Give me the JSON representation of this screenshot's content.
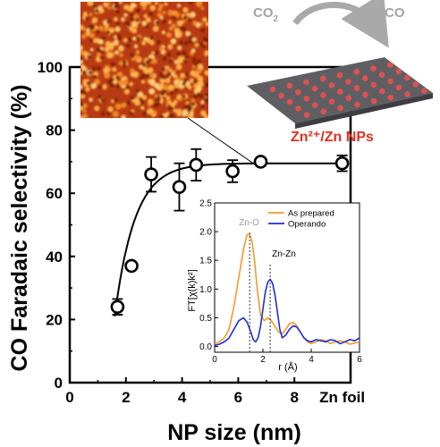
{
  "chart_data": [
    {
      "type": "scatter",
      "xlabel": "NP size (nm)",
      "ylabel": "CO Faradaic selectivity (%)",
      "xlim": [
        0,
        10
      ],
      "ylim": [
        0,
        100
      ],
      "xticks": [
        0,
        2,
        4,
        6,
        8
      ],
      "yticks": [
        0,
        20,
        40,
        60,
        80,
        100
      ],
      "extra_xtick": {
        "x": 9.7,
        "label": "Zn foil"
      },
      "points": [
        {
          "x": 1.7,
          "y": 24,
          "err": 2.5
        },
        {
          "x": 2.2,
          "y": 37,
          "err": 0
        },
        {
          "x": 2.9,
          "y": 66,
          "err": 5.5
        },
        {
          "x": 3.9,
          "y": 62,
          "err": 7.5
        },
        {
          "x": 4.5,
          "y": 69,
          "err": 5
        },
        {
          "x": 5.8,
          "y": 67,
          "err": 3.5
        },
        {
          "x": 6.8,
          "y": 70,
          "err": 1
        },
        {
          "x": 9.7,
          "y": 69.5,
          "err": 2.5
        }
      ],
      "fit": {
        "x0": 1.6,
        "x1": 9.7,
        "plateau": 69.5,
        "y_start": 21,
        "k": 1.4
      },
      "annotations": {
        "co2": "CO",
        "co2_sub": "2",
        "co": "CO",
        "np_label": "Zn²⁺/Zn NPs"
      },
      "colors": {
        "label_red": "#e03020",
        "afm_orange": "#d0581a",
        "surface": "#6e6e72",
        "np_dot": "#e05050"
      }
    },
    {
      "type": "line",
      "xlabel": "r (Å)",
      "ylabel": "FT[χ(k)k²]",
      "xlim": [
        0,
        6
      ],
      "ylim": [
        -0.1,
        2.5
      ],
      "xticks": [
        0,
        2,
        4,
        6
      ],
      "yticks": [
        0.0,
        0.5,
        1.0,
        1.5,
        2.0,
        2.5
      ],
      "series": [
        {
          "name": "As prepared",
          "color": "#f39a2a",
          "x": [
            0,
            0.2,
            0.4,
            0.6,
            0.8,
            1.0,
            1.2,
            1.35,
            1.45,
            1.55,
            1.65,
            1.75,
            1.9,
            2.05,
            2.2,
            2.35,
            2.5,
            2.65,
            2.8,
            2.95,
            3.1,
            3.25,
            3.4,
            3.55,
            3.7,
            3.85,
            4.0,
            4.2,
            4.4,
            4.6,
            4.8,
            5.0,
            5.2,
            5.4,
            5.6,
            5.8,
            6.0
          ],
          "y": [
            0.05,
            0.08,
            0.15,
            0.3,
            0.7,
            1.2,
            1.7,
            1.95,
            1.95,
            1.82,
            1.5,
            1.05,
            0.55,
            0.45,
            0.5,
            0.45,
            0.35,
            0.25,
            0.22,
            0.3,
            0.4,
            0.42,
            0.36,
            0.25,
            0.15,
            0.08,
            0.05,
            0.08,
            0.12,
            0.1,
            0.05,
            0.08,
            0.1,
            0.08,
            0.04,
            0.06,
            0.08
          ]
        },
        {
          "name": "Operando",
          "color": "#1f2fd8",
          "x": [
            0,
            0.2,
            0.4,
            0.6,
            0.8,
            1.0,
            1.2,
            1.35,
            1.5,
            1.6,
            1.7,
            1.8,
            1.9,
            2.0,
            2.1,
            2.2,
            2.3,
            2.4,
            2.5,
            2.6,
            2.7,
            2.8,
            2.95,
            3.1,
            3.25,
            3.4,
            3.55,
            3.7,
            3.85,
            4.0,
            4.2,
            4.4,
            4.6,
            4.8,
            5.0,
            5.2,
            5.4,
            5.6,
            5.8,
            6.0
          ],
          "y": [
            0.02,
            0.04,
            0.08,
            0.15,
            0.3,
            0.45,
            0.5,
            0.42,
            0.25,
            0.12,
            0.08,
            0.15,
            0.35,
            0.65,
            0.95,
            1.12,
            1.17,
            1.1,
            0.9,
            0.6,
            0.3,
            0.15,
            0.2,
            0.3,
            0.36,
            0.34,
            0.25,
            0.15,
            0.1,
            0.08,
            0.12,
            0.1,
            0.08,
            0.12,
            0.1,
            0.05,
            0.08,
            0.12,
            0.1,
            0.15
          ]
        }
      ],
      "peak_labels": [
        {
          "text": "Zn-O",
          "x": 1.45
        },
        {
          "text": "Zn-Zn",
          "x": 2.3
        }
      ],
      "legend": "top-right"
    }
  ]
}
